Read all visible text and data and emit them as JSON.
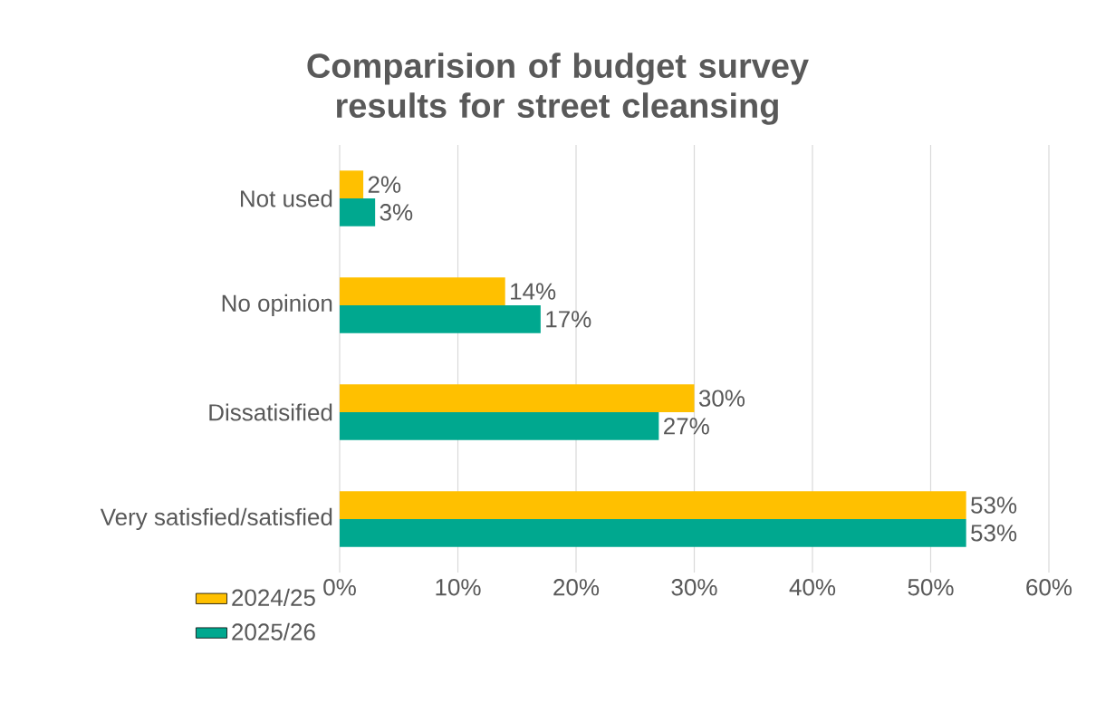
{
  "chart_data": {
    "type": "bar",
    "orientation": "horizontal",
    "title": "Comparision of budget survey results for street cleansing",
    "categories": [
      "Not used",
      "No opinion",
      "Dissatisified",
      "Very satisfied/satisfied"
    ],
    "series": [
      {
        "name": "2024/25",
        "color": "#ffc000",
        "values": [
          2,
          14,
          30,
          53
        ],
        "value_labels": [
          "2%",
          "14%",
          "30%",
          "53%"
        ]
      },
      {
        "name": "2025/26",
        "color": "#00a88f",
        "values": [
          3,
          17,
          27,
          53
        ],
        "value_labels": [
          "3%",
          "17%",
          "27%",
          "53%"
        ]
      }
    ],
    "xlim": [
      0,
      60
    ],
    "xticks": [
      {
        "value": 0,
        "label": "0%"
      },
      {
        "value": 10,
        "label": "10%"
      },
      {
        "value": 20,
        "label": "20%"
      },
      {
        "value": 30,
        "label": "30%"
      },
      {
        "value": 40,
        "label": "40%"
      },
      {
        "value": 50,
        "label": "50%"
      },
      {
        "value": 60,
        "label": "60%"
      }
    ],
    "grid": "x",
    "legend": "bottom left"
  }
}
